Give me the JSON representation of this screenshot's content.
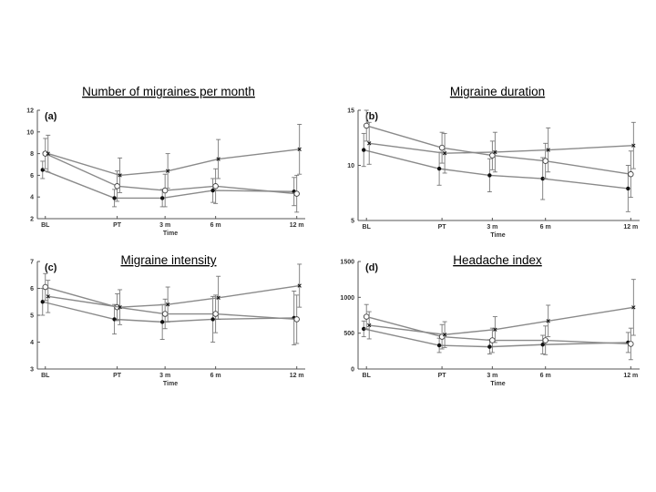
{
  "chart_data": [
    {
      "type": "line",
      "panel_label": "(a)",
      "title": "Number of migraines per month",
      "xlabel": "Time",
      "ylabel": "",
      "categories": [
        "BL",
        "PT",
        "3 m",
        "6 m",
        "12 m"
      ],
      "ylim": [
        2,
        12
      ],
      "yticks": [
        "2",
        "4",
        "6",
        "8",
        "10",
        "12"
      ],
      "series": [
        {
          "marker": "filled-circle",
          "values": [
            6.5,
            3.9,
            3.9,
            4.6,
            4.5
          ],
          "errors": [
            0.8,
            0.8,
            0.8,
            1.1,
            1.3
          ]
        },
        {
          "marker": "open-circle",
          "values": [
            8.0,
            5.0,
            4.6,
            5.0,
            4.3
          ],
          "errors": [
            1.4,
            1.4,
            1.5,
            1.6,
            1.7
          ]
        },
        {
          "marker": "cross",
          "values": [
            8.0,
            6.0,
            6.4,
            7.5,
            8.4
          ],
          "errors": [
            1.7,
            1.6,
            1.6,
            1.8,
            2.3
          ]
        }
      ]
    },
    {
      "type": "line",
      "panel_label": "(b)",
      "title": "Migraine duration",
      "xlabel": "Time",
      "ylabel": "",
      "categories": [
        "BL",
        "PT",
        "3 m",
        "6 m",
        "12 m"
      ],
      "ylim": [
        5,
        15
      ],
      "yticks": [
        "5",
        "10",
        "15"
      ],
      "series": [
        {
          "marker": "filled-circle",
          "values": [
            11.4,
            9.7,
            9.1,
            8.8,
            7.9
          ],
          "errors": [
            1.5,
            1.5,
            1.5,
            1.9,
            2.1
          ]
        },
        {
          "marker": "open-circle",
          "values": [
            13.6,
            11.6,
            10.9,
            10.4,
            9.2
          ],
          "errors": [
            1.4,
            1.4,
            1.3,
            1.6,
            2.1
          ]
        },
        {
          "marker": "cross",
          "values": [
            12.0,
            11.1,
            11.2,
            11.4,
            11.8
          ],
          "errors": [
            1.9,
            1.8,
            1.8,
            2.0,
            2.1
          ]
        }
      ]
    },
    {
      "type": "line",
      "panel_label": "(c)",
      "title": "Migraine intensity",
      "xlabel": "Time",
      "ylabel": "",
      "categories": [
        "BL",
        "PT",
        "3 m",
        "6 m",
        "12 m"
      ],
      "ylim": [
        3,
        7
      ],
      "yticks": [
        "3",
        "4",
        "5",
        "6",
        "7"
      ],
      "series": [
        {
          "marker": "filled-circle",
          "values": [
            5.5,
            4.85,
            4.75,
            4.85,
            4.9
          ],
          "errors": [
            0.5,
            0.55,
            0.65,
            0.85,
            1.0
          ]
        },
        {
          "marker": "open-circle",
          "values": [
            6.05,
            5.3,
            5.05,
            5.05,
            4.85
          ],
          "errors": [
            0.5,
            0.5,
            0.55,
            0.7,
            0.9
          ]
        },
        {
          "marker": "cross",
          "values": [
            5.7,
            5.3,
            5.4,
            5.65,
            6.1
          ],
          "errors": [
            0.6,
            0.65,
            0.65,
            0.8,
            0.8
          ]
        }
      ]
    },
    {
      "type": "line",
      "panel_label": "(d)",
      "title": "Headache index",
      "xlabel": "Time",
      "ylabel": "",
      "categories": [
        "BL",
        "PT",
        "3 m",
        "6 m",
        "12 m"
      ],
      "ylim": [
        0,
        1500
      ],
      "yticks": [
        "0",
        "500",
        "1000",
        "1500"
      ],
      "series": [
        {
          "marker": "filled-circle",
          "values": [
            560,
            330,
            310,
            340,
            370
          ],
          "errors": [
            110,
            100,
            100,
            130,
            140
          ]
        },
        {
          "marker": "open-circle",
          "values": [
            730,
            450,
            400,
            400,
            350
          ],
          "errors": [
            170,
            170,
            170,
            200,
            220
          ]
        },
        {
          "marker": "cross",
          "values": [
            610,
            480,
            550,
            670,
            860
          ],
          "errors": [
            190,
            180,
            180,
            220,
            390
          ]
        }
      ]
    }
  ],
  "colors": {
    "line": "#8a8a8a",
    "marker": "#111111",
    "axis": "#555555"
  }
}
